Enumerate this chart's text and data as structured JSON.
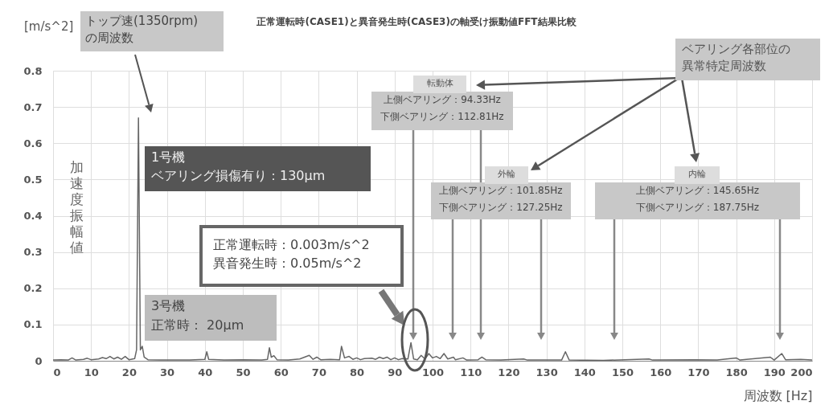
{
  "chart_data": {
    "type": "line",
    "title": "正常運転時(CASE1)と異音発生時(CASE3)の軸受け振動値FFT結果比較",
    "xlabel": "周波数 [Hz]",
    "ylabel": "加速度振幅値",
    "x": [
      0,
      2,
      4,
      5,
      6,
      8,
      9,
      10,
      12,
      13,
      14,
      15,
      16,
      17,
      18,
      19,
      20,
      21.5,
      22,
      22.5,
      23,
      23.5,
      24,
      25,
      28,
      32,
      36,
      40,
      40.5,
      41,
      45,
      50,
      55,
      56.5,
      57,
      57.5,
      58.2,
      59,
      62,
      65,
      67.5,
      68.5,
      69.5,
      70.5,
      73,
      75.5,
      76,
      76.8,
      78,
      79,
      80,
      81,
      82,
      84,
      85,
      86,
      87,
      88,
      89,
      90,
      91,
      92,
      93.5,
      94.3,
      95,
      96,
      97,
      98,
      99,
      100,
      101,
      102,
      103,
      104,
      105.5,
      106,
      108,
      109,
      112,
      113,
      114,
      118,
      124,
      125,
      134,
      135,
      136,
      145,
      157,
      158,
      169,
      175,
      180,
      181,
      189,
      190,
      192,
      193,
      197,
      200
    ],
    "series": [
      {
        "color": "#666666",
        "values": [
          0.002,
          0.003,
          0.002,
          0.008,
          0.002,
          0.004,
          0.007,
          0.003,
          0.005,
          0.009,
          0.006,
          0.012,
          0.005,
          0.01,
          0.004,
          0.012,
          0.003,
          0.006,
          0.03,
          0.67,
          0.03,
          0.04,
          0.01,
          0.003,
          0.002,
          0.002,
          0.002,
          0.004,
          0.025,
          0.004,
          0.002,
          0.003,
          0.002,
          0.004,
          0.036,
          0.01,
          0.014,
          0.003,
          0.002,
          0.005,
          0.015,
          0.004,
          0.01,
          0.003,
          0.004,
          0.003,
          0.04,
          0.008,
          0.012,
          0.004,
          0.008,
          0.003,
          0.006,
          0.007,
          0.004,
          0.01,
          0.006,
          0.01,
          0.003,
          0.008,
          0.003,
          0.006,
          0.005,
          0.05,
          0.005,
          0.003,
          0.015,
          0.005,
          0.02,
          0.008,
          0.012,
          0.006,
          0.02,
          0.005,
          0.01,
          0.003,
          0.008,
          0.002,
          0.003,
          0.01,
          0.003,
          0.002,
          0.005,
          0.002,
          0.002,
          0.025,
          0.002,
          0.001,
          0.005,
          0.002,
          0.003,
          0.002,
          0.008,
          0.002,
          0.01,
          0.002,
          0.02,
          0.003,
          0.004,
          0.002
        ]
      }
    ],
    "xlim": [
      0,
      200
    ],
    "xticks": [
      0,
      10,
      20,
      30,
      40,
      50,
      60,
      70,
      80,
      90,
      100,
      110,
      120,
      130,
      140,
      150,
      160,
      170,
      180,
      190,
      200
    ],
    "ylim": [
      0,
      0.8
    ],
    "yticks": [
      0,
      0.1,
      0.2,
      0.3,
      0.4,
      0.5,
      0.6,
      0.7,
      0.8
    ],
    "grid": true,
    "annotations": [
      "[m/s^2]",
      "トップ速(1350rpm)",
      "の周波数",
      "1号機",
      "ベアリング損傷有り：130μm",
      "3号機",
      "正常時： 20μm",
      "正常運転時：0.003m/s^2",
      "異音発生時：0.05m/s^2",
      "ベアリング各部位の",
      "異常特定周波数",
      "転動体",
      "上側ベアリング：94.33Hz",
      "下側ベアリング：112.81Hz",
      "外輪",
      "上側ベアリング：101.85Hz",
      "下側ベアリング：127.25Hz",
      "内輪",
      "上側ベアリング：145.65Hz",
      "下側ベアリング：187.75Hz"
    ]
  }
}
